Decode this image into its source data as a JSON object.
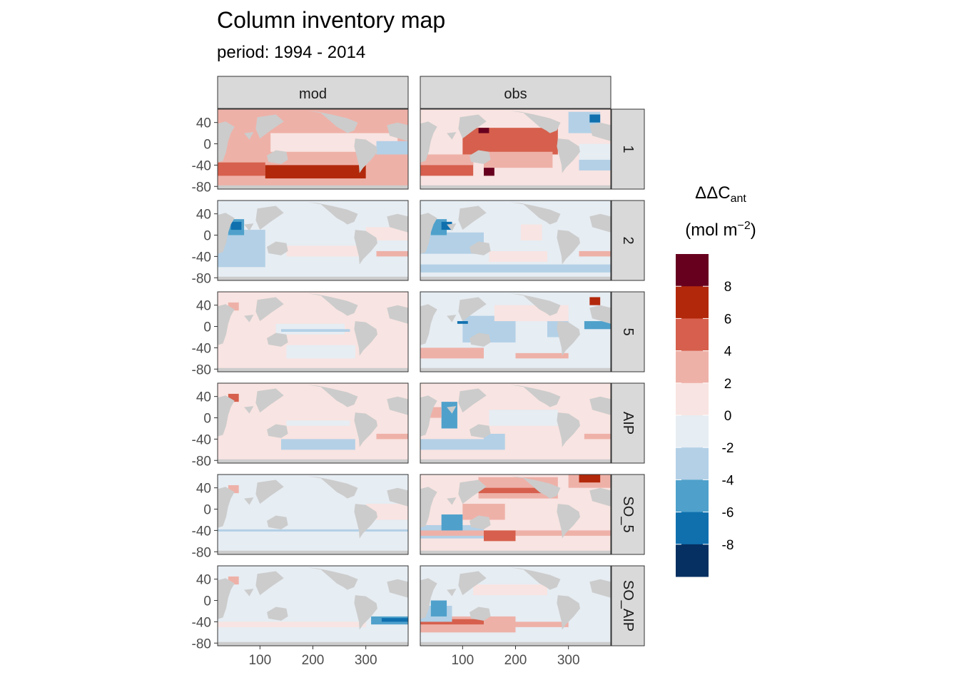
{
  "chart_data": {
    "type": "heatmap",
    "title": "Column inventory map",
    "subtitle": "period: 1994 - 2014",
    "facet_columns": [
      "mod",
      "obs"
    ],
    "facet_rows": [
      "1",
      "2",
      "5",
      "AIP",
      "SO_5",
      "SO_AIP"
    ],
    "x_ticks": [
      100,
      200,
      300
    ],
    "y_ticks": [
      40,
      0,
      -40,
      -80
    ],
    "xlim": [
      20,
      380
    ],
    "ylim": [
      -85,
      65
    ],
    "land_color": "#cccccc",
    "legend": {
      "title_line1": "ΔΔC",
      "title_sub": "ant",
      "title_line2a": "(mol m",
      "title_sup": "−2",
      "title_line2b": ")",
      "placement": "right",
      "tick_labels": [
        "8",
        "6",
        "4",
        "2",
        "0",
        "-2",
        "-4",
        "-6",
        "-8"
      ],
      "bins": [
        {
          "color": "#67001f"
        },
        {
          "color": "#b2280b"
        },
        {
          "color": "#d6604d"
        },
        {
          "color": "#eeb1a8"
        },
        {
          "color": "#f8e4e2"
        },
        {
          "color": "#e6edf3"
        },
        {
          "color": "#b3d0e6"
        },
        {
          "color": "#4fa1cb"
        },
        {
          "color": "#1070ae"
        },
        {
          "color": "#053061"
        }
      ]
    },
    "panels": [
      {
        "row": "1",
        "col": "mod",
        "base": 3,
        "blocks": [
          [
            30,
            40,
            5,
            20,
            3
          ],
          [
            260,
            330,
            -20,
            15,
            3
          ],
          [
            20,
            110,
            -60,
            -35,
            2
          ],
          [
            110,
            300,
            -65,
            -40,
            1
          ],
          [
            120,
            360,
            -15,
            20,
            4
          ],
          [
            320,
            380,
            -20,
            5,
            6
          ]
        ]
      },
      {
        "row": "1",
        "col": "obs",
        "base": 4,
        "blocks": [
          [
            100,
            280,
            -20,
            30,
            2
          ],
          [
            20,
            120,
            -60,
            -30,
            2
          ],
          [
            20,
            120,
            -40,
            -20,
            3
          ],
          [
            140,
            160,
            -60,
            -40,
            0
          ],
          [
            300,
            360,
            20,
            60,
            6
          ],
          [
            340,
            360,
            40,
            55,
            8
          ],
          [
            320,
            380,
            -50,
            -20,
            6
          ],
          [
            320,
            380,
            -30,
            0,
            5
          ],
          [
            130,
            150,
            20,
            30,
            0
          ],
          [
            140,
            270,
            -45,
            -15,
            3
          ]
        ]
      },
      {
        "row": "2",
        "col": "mod",
        "base": 5,
        "blocks": [
          [
            20,
            110,
            -60,
            10,
            6
          ],
          [
            40,
            70,
            0,
            30,
            7
          ],
          [
            45,
            65,
            10,
            25,
            8
          ],
          [
            150,
            300,
            -40,
            -20,
            4
          ],
          [
            320,
            380,
            -40,
            -30,
            3
          ],
          [
            300,
            380,
            -10,
            15,
            4
          ]
        ]
      },
      {
        "row": "2",
        "col": "obs",
        "base": 5,
        "blocks": [
          [
            20,
            140,
            -35,
            5,
            6
          ],
          [
            40,
            70,
            0,
            30,
            7
          ],
          [
            60,
            80,
            10,
            25,
            8
          ],
          [
            20,
            380,
            -70,
            -55,
            6
          ],
          [
            320,
            380,
            -40,
            -30,
            3
          ],
          [
            150,
            260,
            -50,
            -30,
            4
          ],
          [
            210,
            250,
            -10,
            20,
            4
          ]
        ]
      },
      {
        "row": "5",
        "col": "mod",
        "base": 4,
        "blocks": [
          [
            130,
            260,
            -15,
            5,
            5
          ],
          [
            140,
            270,
            -10,
            -5,
            6
          ],
          [
            150,
            280,
            -60,
            -35,
            5
          ],
          [
            40,
            60,
            30,
            45,
            3
          ]
        ]
      },
      {
        "row": "5",
        "col": "obs",
        "base": 5,
        "blocks": [
          [
            20,
            140,
            -60,
            -40,
            3
          ],
          [
            100,
            200,
            -30,
            20,
            6
          ],
          [
            260,
            300,
            -20,
            20,
            6
          ],
          [
            330,
            380,
            -5,
            10,
            7
          ],
          [
            340,
            360,
            40,
            55,
            1
          ],
          [
            90,
            110,
            5,
            10,
            8
          ],
          [
            160,
            300,
            10,
            40,
            4
          ],
          [
            200,
            300,
            -60,
            -50,
            3
          ]
        ]
      },
      {
        "row": "AIP",
        "col": "mod",
        "base": 4,
        "blocks": [
          [
            140,
            280,
            -60,
            -40,
            6
          ],
          [
            150,
            270,
            -15,
            -5,
            5
          ],
          [
            320,
            380,
            -40,
            -30,
            3
          ],
          [
            40,
            60,
            30,
            45,
            2
          ],
          [
            300,
            380,
            -10,
            10,
            4
          ]
        ]
      },
      {
        "row": "AIP",
        "col": "obs",
        "base": 4,
        "blocks": [
          [
            20,
            140,
            -60,
            -40,
            6
          ],
          [
            60,
            90,
            -20,
            30,
            7
          ],
          [
            140,
            180,
            -60,
            -30,
            6
          ],
          [
            250,
            300,
            -20,
            10,
            4
          ],
          [
            330,
            380,
            -40,
            -30,
            3
          ],
          [
            150,
            280,
            -15,
            15,
            5
          ],
          [
            20,
            60,
            0,
            20,
            3
          ]
        ]
      },
      {
        "row": "SO_5",
        "col": "mod",
        "base": 5,
        "blocks": [
          [
            20,
            380,
            -42,
            -38,
            6
          ],
          [
            40,
            60,
            30,
            45,
            3
          ],
          [
            300,
            380,
            -20,
            10,
            4
          ]
        ]
      },
      {
        "row": "SO_5",
        "col": "obs",
        "base": 4,
        "blocks": [
          [
            20,
            140,
            -55,
            -30,
            6
          ],
          [
            100,
            180,
            -20,
            10,
            3
          ],
          [
            130,
            280,
            20,
            60,
            3
          ],
          [
            130,
            250,
            30,
            40,
            2
          ],
          [
            300,
            380,
            40,
            65,
            3
          ],
          [
            320,
            360,
            50,
            65,
            1
          ],
          [
            20,
            380,
            -50,
            -40,
            3
          ],
          [
            140,
            200,
            -60,
            -40,
            2
          ],
          [
            60,
            100,
            -40,
            -10,
            7
          ]
        ]
      },
      {
        "row": "SO_AIP",
        "col": "mod",
        "base": 5,
        "blocks": [
          [
            310,
            380,
            -45,
            -30,
            7
          ],
          [
            330,
            380,
            -40,
            -33,
            8
          ],
          [
            20,
            300,
            -50,
            -40,
            4
          ],
          [
            40,
            60,
            30,
            45,
            3
          ]
        ]
      },
      {
        "row": "SO_AIP",
        "col": "obs",
        "base": 5,
        "blocks": [
          [
            20,
            200,
            -60,
            -30,
            3
          ],
          [
            20,
            140,
            -45,
            -35,
            2
          ],
          [
            20,
            80,
            -40,
            -10,
            6
          ],
          [
            40,
            70,
            -30,
            0,
            7
          ],
          [
            150,
            300,
            -50,
            -40,
            3
          ],
          [
            120,
            260,
            10,
            30,
            4
          ]
        ]
      }
    ]
  }
}
